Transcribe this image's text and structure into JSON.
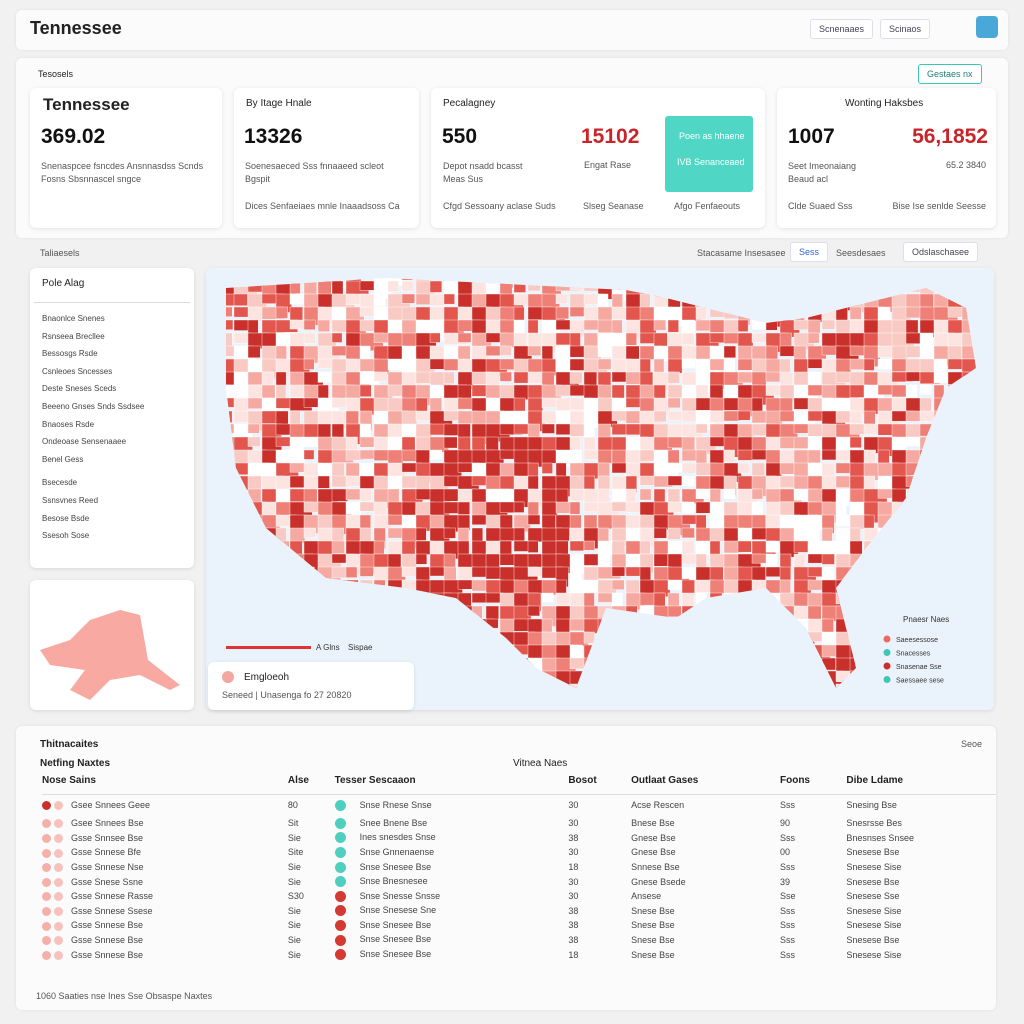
{
  "header": {
    "title": "Tennessee",
    "buttons": [
      "Scnenaaes",
      "Scinaos"
    ]
  },
  "summary": {
    "label": "Tesosels",
    "button": "Gestaes nx"
  },
  "cards": [
    {
      "title": "Tennessee",
      "value": "369.02",
      "desc": "Snenaspcee fsncdes Ansnnasdss Scnds Fosns Sbsnnascel sngce"
    },
    {
      "title": "By Itage Hnale",
      "value": "13326",
      "desc": "Soenesaeced Sss fnnaaeed scleot Bgspit",
      "footer": "Dices Senfaeiaes mnle Inaaadsoss Ca"
    },
    {
      "title": "Pecalagney",
      "value": "550",
      "value2": "15102",
      "desc": "Depot nsadd bcasst Meas Sus",
      "desc2": "Engat Rase",
      "footer": "Cfgd Sessoany aclase Suds",
      "footer2": "Slseg Seanase",
      "footer3": "Afgo Fenfaeouts",
      "callout": [
        "Poen as hhaene",
        "IVB Senanceaed"
      ]
    },
    {
      "title": "Wonting Haksbes",
      "value": "1007",
      "value2": "56,1852",
      "desc": "Seet Imeonaiang Beaud acl",
      "desc2": "65.2 3840",
      "footer": "Clde Suaed Sss",
      "footer2": "Bise Ise senlde Seesse"
    }
  ],
  "map": {
    "label": "Taliaesels",
    "controls": [
      "Stacasame Insesasee",
      "Sess",
      "Seesdesaes",
      "Odslaschasee"
    ],
    "panel_title": "Pole Alag",
    "panel_items": [
      "Bnaonlce Snenes",
      "Rsnseea Brecllee",
      "Bessosgs Rsde",
      "Csnleoes Sncesses",
      "Deste Sneses Sceds",
      "Beeeno Gnses Snds Ssdsee",
      "Bnaoses Rsde",
      "Ondeoase Sensenaaee",
      "Benel Gess",
      "Bsecesde",
      "Ssnsvnes Reed",
      "Besose Bsde",
      "Ssesoh Sose"
    ],
    "scale_labels": [
      "A Glns",
      "Sispae"
    ],
    "inset_title": "Emgloeoh",
    "inset_text": "Seneed | Unasenga fo 27 20820",
    "legend_title": "Pnaesr Naes",
    "legend_items": [
      "Saeesessose",
      "Snacesses",
      "Snasenae Sse",
      "Saessaee sese"
    ]
  },
  "table": {
    "title": "Thitnacaites",
    "sort": "Seoe",
    "subtitle": "Netfing Naxtes",
    "subtitle2": "Vitnea Naes",
    "columns": [
      "Nose Sains",
      "Alse",
      "Tesser Sescaaon",
      "Bosot",
      "Outlaat Gases",
      "Foons",
      "Dibe Ldame"
    ],
    "rows": [
      [
        "Gsee Snnees Geee",
        "80",
        "Snse Rnese Snse",
        "30",
        "Acse Rescen",
        "Sss",
        "Snesing Bse"
      ],
      [
        "Gsee Snnees Bse",
        "Sit",
        "Snee Bnene Bse",
        "30",
        "Bnese Bse",
        "90",
        "Snesrsse Bes"
      ],
      [
        "Gsse Snnsee Bse",
        "Sie",
        "Ines snesdes Snse",
        "38",
        "Gnese Bse",
        "Sss",
        "Bnesnses Snsee"
      ],
      [
        "Gsse Snnese Bfe",
        "Site",
        "Snse Gnnenaense",
        "30",
        "Gnese Bse",
        "00",
        "Snesese Bse"
      ],
      [
        "Gsse Snnese Nse",
        "Sie",
        "Snse Snesee Bse",
        "18",
        "Snnese Bse",
        "Sss",
        "Snesese Sise"
      ],
      [
        "Gsse Snese Ssne",
        "Sie",
        "Snse Bnesnesee",
        "30",
        "Gnese Bsede",
        "39",
        "Snesese Bse"
      ],
      [
        "Gsse Snnese Rasse",
        "S30",
        "Snse Snesse Snsse",
        "30",
        "Ansese",
        "Sse",
        "Snesese Sse"
      ],
      [
        "Gsse Snnese Ssese",
        "Sie",
        "Snse Snesese Sne",
        "38",
        "Snese Bse",
        "Sss",
        "Snesese Sise"
      ],
      [
        "Gsse Snnese Bse",
        "Sie",
        "Snse Snesee Bse",
        "38",
        "Snese Bse",
        "Sss",
        "Snesese Sise"
      ],
      [
        "Gsse Snnese Bse",
        "Sie",
        "Snse Snesee Bse",
        "38",
        "Snese Bse",
        "Sss",
        "Snesese Bse"
      ],
      [
        "Gsse Snnese Bse",
        "Sie",
        "Snse Snesee Bse",
        "18",
        "Snese Bse",
        "Sss",
        "Snesese Sise"
      ]
    ],
    "footer": "1060 Saaties nse Ines Sse Obsaspe Naxtes"
  }
}
